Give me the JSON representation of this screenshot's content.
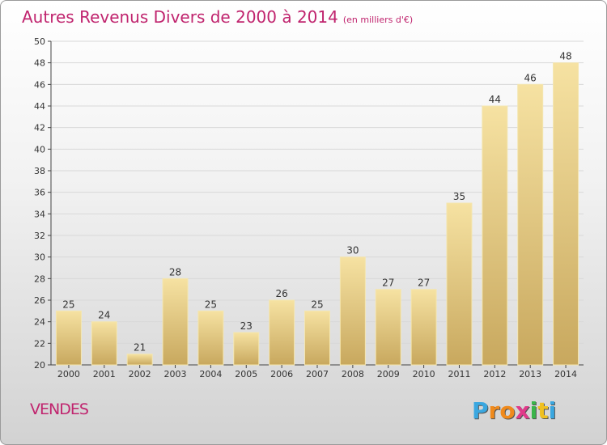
{
  "header": {
    "title": "Autres Revenus Divers de 2000 à 2014",
    "unit": "(en milliers d'€)"
  },
  "footer": {
    "commune": "VENDES",
    "logo_letters": [
      "P",
      "r",
      "o",
      "x",
      "i",
      "t",
      "i"
    ],
    "logo_colors": [
      "#3aa7e0",
      "#f08a1c",
      "#f08a1c",
      "#e03a8a",
      "#3ab54a",
      "#f0c020",
      "#3aa7e0"
    ]
  },
  "colors": {
    "title": "#c0246e",
    "bar_light": "#f6e2a2",
    "bar_dark": "#c8a85e"
  },
  "chart_data": {
    "type": "bar",
    "categories": [
      "2000",
      "2001",
      "2002",
      "2003",
      "2004",
      "2005",
      "2006",
      "2007",
      "2008",
      "2009",
      "2010",
      "2011",
      "2012",
      "2013",
      "2014"
    ],
    "values": [
      25,
      24,
      21,
      28,
      25,
      23,
      26,
      25,
      30,
      27,
      27,
      35,
      44,
      46,
      48
    ],
    "ylim": [
      20,
      50
    ],
    "yticks": [
      20,
      22,
      24,
      26,
      28,
      30,
      32,
      34,
      36,
      38,
      40,
      42,
      44,
      46,
      48,
      50
    ],
    "grid": true,
    "legend": "none"
  }
}
